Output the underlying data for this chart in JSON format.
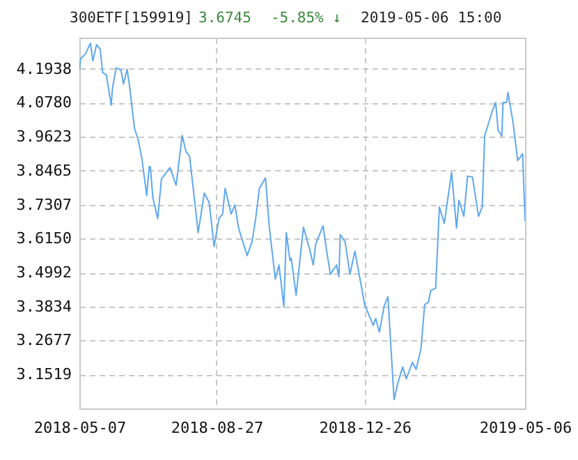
{
  "chart_data": {
    "type": "line",
    "title": "300ETF[159919]",
    "annotations": [
      "3.6745",
      "-5.85% ↓",
      "2019-05-06 15:00"
    ],
    "x": [
      "2018-05-07",
      "2018-05-08",
      "2018-05-12",
      "2018-05-16",
      "2018-05-18",
      "2018-05-21",
      "2018-05-24",
      "2018-05-26",
      "2018-05-29",
      "2018-06-02",
      "2018-06-03",
      "2018-06-06",
      "2018-06-10",
      "2018-06-12",
      "2018-06-15",
      "2018-06-17",
      "2018-06-21",
      "2018-06-24",
      "2018-06-27",
      "2018-07-01",
      "2018-07-03",
      "2018-07-04",
      "2018-07-06",
      "2018-07-10",
      "2018-07-13",
      "2018-07-20",
      "2018-07-25",
      "2018-07-30",
      "2018-08-02",
      "2018-08-05",
      "2018-08-12",
      "2018-08-17",
      "2018-08-21",
      "2018-08-25",
      "2018-08-29",
      "2018-09-01",
      "2018-09-03",
      "2018-09-08",
      "2018-09-11",
      "2018-09-14",
      "2018-09-21",
      "2018-09-25",
      "2018-09-28",
      "2018-10-01",
      "2018-10-06",
      "2018-10-09",
      "2018-10-14",
      "2018-10-17",
      "2018-10-21",
      "2018-10-23",
      "2018-10-26",
      "2018-10-27",
      "2018-10-31",
      "2018-11-06",
      "2018-11-11",
      "2018-11-14",
      "2018-11-16",
      "2018-11-22",
      "2018-11-25",
      "2018-11-28",
      "2018-12-03",
      "2018-12-05",
      "2018-12-06",
      "2018-12-10",
      "2018-12-14",
      "2018-12-18",
      "2018-12-26",
      "2019-01-02",
      "2019-01-04",
      "2019-01-07",
      "2019-01-11",
      "2019-01-14",
      "2019-01-19",
      "2019-01-22",
      "2019-01-26",
      "2019-01-29",
      "2019-02-03",
      "2019-02-06",
      "2019-02-10",
      "2019-02-13",
      "2019-02-16",
      "2019-02-18",
      "2019-02-22",
      "2019-02-25",
      "2019-03-01",
      "2019-03-07",
      "2019-03-11",
      "2019-03-13",
      "2019-03-17",
      "2019-03-20",
      "2019-03-24",
      "2019-03-29",
      "2019-04-01",
      "2019-04-03",
      "2019-04-09",
      "2019-04-12",
      "2019-04-14",
      "2019-04-17",
      "2019-04-18",
      "2019-04-21",
      "2019-04-22",
      "2019-04-26",
      "2019-04-30",
      "2019-05-04",
      "2019-05-06"
    ],
    "series": [
      {
        "color": "#5ea8ee",
        "values": [
          4.189,
          4.228,
          4.245,
          4.281,
          4.221,
          4.276,
          4.26,
          4.181,
          4.173,
          4.07,
          4.126,
          4.197,
          4.189,
          4.142,
          4.192,
          4.134,
          3.991,
          3.952,
          3.889,
          3.762,
          3.86,
          3.86,
          3.754,
          3.683,
          3.818,
          3.857,
          3.797,
          3.967,
          3.912,
          3.896,
          3.635,
          3.77,
          3.738,
          3.588,
          3.683,
          3.699,
          3.786,
          3.699,
          3.73,
          3.651,
          3.557,
          3.604,
          3.683,
          3.786,
          3.822,
          3.659,
          3.477,
          3.525,
          3.382,
          3.635,
          3.54,
          3.548,
          3.422,
          3.654,
          3.58,
          3.525,
          3.596,
          3.659,
          3.572,
          3.493,
          3.525,
          3.485,
          3.628,
          3.604,
          3.493,
          3.572,
          3.39,
          3.319,
          3.343,
          3.296,
          3.386,
          3.417,
          3.066,
          3.121,
          3.177,
          3.137,
          3.193,
          3.169,
          3.24,
          3.39,
          3.398,
          3.438,
          3.446,
          3.723,
          3.667,
          3.841,
          3.651,
          3.746,
          3.691,
          3.828,
          3.825,
          3.691,
          3.723,
          3.965,
          4.047,
          4.079,
          3.984,
          3.965,
          4.079,
          4.079,
          4.113,
          4.015,
          3.881,
          3.904,
          3.6745
        ]
      }
    ],
    "xlim": [
      "2018-05-07",
      "2019-05-06"
    ],
    "xticks": [
      "2018-05-07",
      "2018-08-27",
      "2018-12-26",
      "2019-05-06"
    ],
    "ylim": [
      3.036,
      4.3
    ],
    "yticks": [
      3.1519,
      3.2677,
      3.3834,
      3.4992,
      {
        "value": 3.615,
        "label": "3.6150"
      },
      3.7307,
      3.8465,
      3.9623,
      {
        "value": 4.078,
        "label": "4.0780"
      },
      4.1938
    ],
    "grid": true
  }
}
